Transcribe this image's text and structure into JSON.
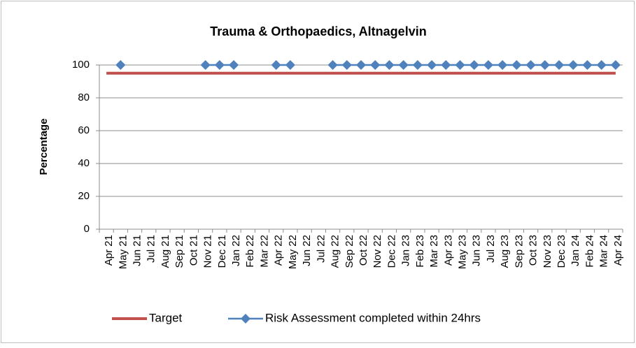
{
  "chart_data": {
    "type": "line",
    "title": "Trauma & Orthopaedics, Altnagelvin",
    "y_label": "Percentage",
    "categories": [
      "Apr 21",
      "May 21",
      "Jun 21",
      "Jul 21",
      "Aug 21",
      "Sep 21",
      "Oct 21",
      "Nov 21",
      "Dec 21",
      "Jan 22",
      "Feb 22",
      "Mar 22",
      "Apr 22",
      "May 22",
      "Jun 22",
      "Jul 22",
      "Aug 22",
      "Sep 22",
      "Oct 22",
      "Nov 22",
      "Dec 22",
      "Jan 23",
      "Feb 23",
      "Mar 23",
      "Apr 23",
      "May 23",
      "Jun 23",
      "Jul 23",
      "Aug 23",
      "Sep 23",
      "Oct 23",
      "Nov 23",
      "Dec 23",
      "Jan 24",
      "Feb 24",
      "Mar 24",
      "Apr 24"
    ],
    "series": [
      {
        "name": "Target",
        "color": "#c0504d",
        "values": [
          95,
          95,
          95,
          95,
          95,
          95,
          95,
          95,
          95,
          95,
          95,
          95,
          95,
          95,
          95,
          95,
          95,
          95,
          95,
          95,
          95,
          95,
          95,
          95,
          95,
          95,
          95,
          95,
          95,
          95,
          95,
          95,
          95,
          95,
          95,
          95,
          95
        ]
      },
      {
        "name": "Risk Assessment completed within 24hrs",
        "color": "#4f81bd",
        "marker": "diamond",
        "values": [
          null,
          100,
          null,
          null,
          null,
          null,
          null,
          100,
          100,
          100,
          null,
          null,
          100,
          100,
          null,
          null,
          100,
          100,
          100,
          100,
          100,
          100,
          100,
          100,
          100,
          100,
          100,
          100,
          100,
          100,
          100,
          100,
          100,
          100,
          100,
          100,
          100
        ]
      }
    ],
    "ylim": [
      0,
      100
    ],
    "yticks": [
      0,
      20,
      40,
      60,
      80,
      100
    ],
    "grid": true,
    "legend": "bottom"
  }
}
